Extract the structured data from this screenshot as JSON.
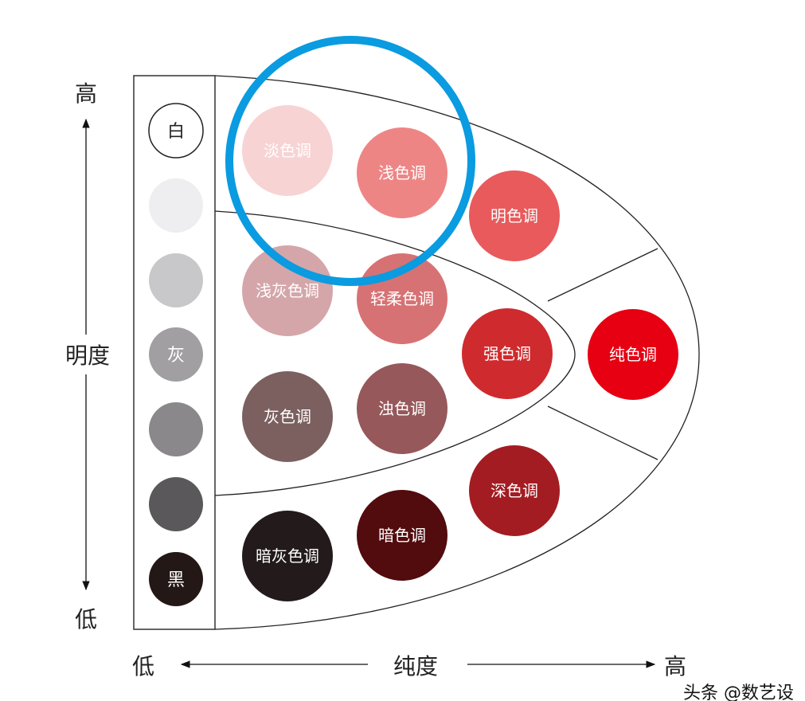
{
  "axes": {
    "lightness_label": "明度",
    "lightness_high": "高",
    "lightness_low": "低",
    "saturation_label": "纯度",
    "saturation_low": "低",
    "saturation_high": "高"
  },
  "gray_scale": [
    {
      "label": "白",
      "color": "#ffffff",
      "text_color": "#222222"
    },
    {
      "label": "",
      "color": "#eeedef"
    },
    {
      "label": "",
      "color": "#c8c7ca"
    },
    {
      "label": "灰",
      "color": "#a19fa2",
      "text_color": "#ffffff"
    },
    {
      "label": "",
      "color": "#8a888b"
    },
    {
      "label": "",
      "color": "#5a585a"
    },
    {
      "label": "黑",
      "color": "#231815",
      "text_color": "#ffffff"
    }
  ],
  "tones": [
    {
      "label": "淡色调",
      "color": "#f8d3d4"
    },
    {
      "label": "浅色调",
      "color": "#ee8585"
    },
    {
      "label": "明色调",
      "color": "#e85a5c"
    },
    {
      "label": "浅灰色调",
      "color": "#d4a6aa"
    },
    {
      "label": "轻柔色调",
      "color": "#d77274"
    },
    {
      "label": "强色调",
      "color": "#cf2b2e"
    },
    {
      "label": "纯色调",
      "color": "#e60012"
    },
    {
      "label": "灰色调",
      "color": "#7b605f"
    },
    {
      "label": "浊色调",
      "color": "#96585a"
    },
    {
      "label": "深色调",
      "color": "#a31c22"
    },
    {
      "label": "暗灰色调",
      "color": "#221a1b"
    },
    {
      "label": "暗色调",
      "color": "#520c0e"
    }
  ],
  "highlight_color": "#0a9be0",
  "watermark": "头条 @数艺设"
}
